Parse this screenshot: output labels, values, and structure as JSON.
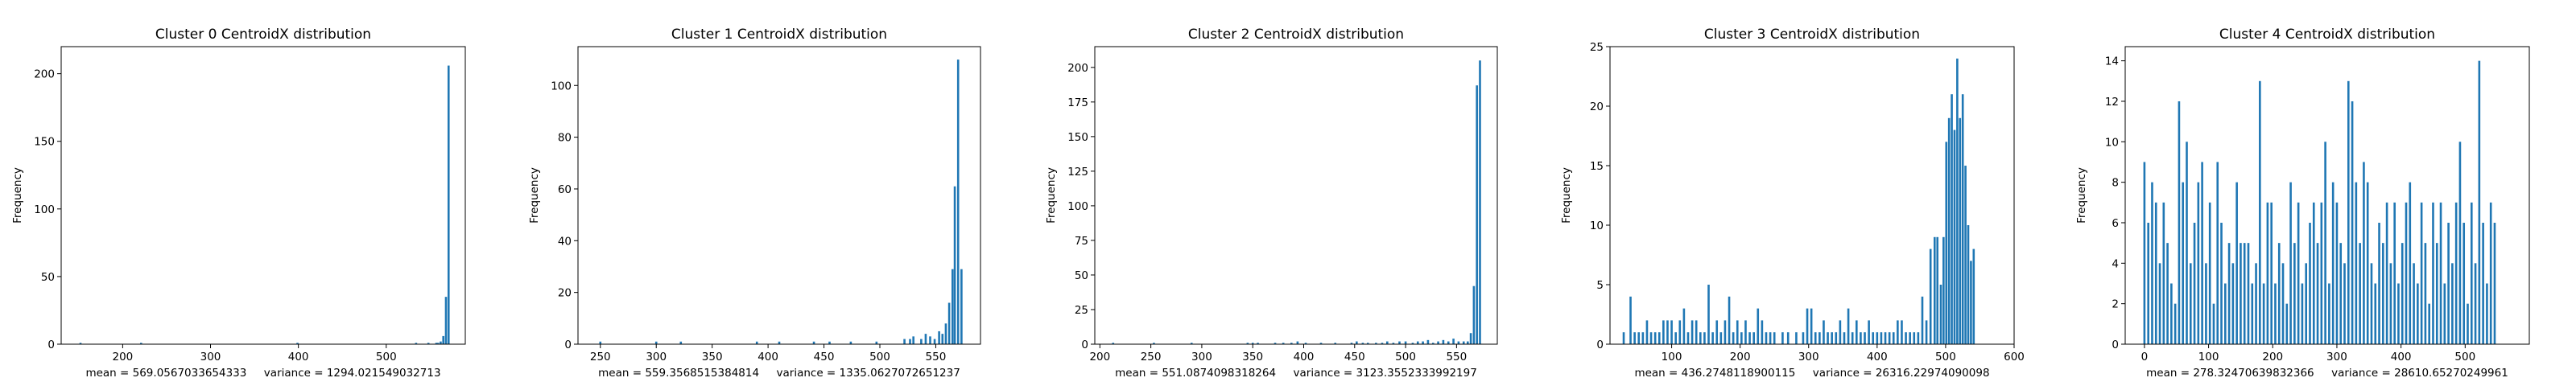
{
  "colors": {
    "bar": "#1f77b4",
    "axis": "#000000",
    "background": "#ffffff"
  },
  "chart_data": [
    {
      "type": "bar",
      "title": "Cluster 0 CentroidX distribution",
      "ylabel": "Frequency",
      "xlabel": "mean = 569.0567033654333     variance = 1294.021549032713",
      "xlim": [
        130,
        590
      ],
      "ylim": [
        0,
        220
      ],
      "xticks": [
        200,
        300,
        400,
        500
      ],
      "yticks": [
        0,
        50,
        100,
        150,
        200
      ],
      "grid": false,
      "bars": [
        [
          152,
          1
        ],
        [
          221,
          1
        ],
        [
          399,
          1
        ],
        [
          534,
          1
        ],
        [
          548,
          1
        ],
        [
          557,
          1
        ],
        [
          559,
          1
        ],
        [
          562,
          2
        ],
        [
          565,
          6
        ],
        [
          568,
          35
        ],
        [
          571,
          206
        ]
      ]
    },
    {
      "type": "bar",
      "title": "Cluster 1 CentroidX distribution",
      "ylabel": "Frequency",
      "xlabel": "mean = 559.3568515384814     variance = 1335.0627072651237",
      "xlim": [
        230,
        590
      ],
      "ylim": [
        0,
        115
      ],
      "xticks": [
        250,
        300,
        350,
        400,
        450,
        500,
        550
      ],
      "yticks": [
        0,
        20,
        40,
        60,
        80,
        100
      ],
      "grid": false,
      "bars": [
        [
          250,
          1
        ],
        [
          300,
          1
        ],
        [
          322,
          1
        ],
        [
          390,
          1
        ],
        [
          410,
          1
        ],
        [
          441,
          1
        ],
        [
          455,
          1
        ],
        [
          474,
          1
        ],
        [
          497,
          1
        ],
        [
          522,
          2
        ],
        [
          527,
          2
        ],
        [
          530,
          3
        ],
        [
          537,
          2
        ],
        [
          541,
          4
        ],
        [
          545,
          3
        ],
        [
          549,
          2
        ],
        [
          553,
          5
        ],
        [
          556,
          4
        ],
        [
          559,
          8
        ],
        [
          562,
          16
        ],
        [
          565,
          29
        ],
        [
          567,
          61
        ],
        [
          570,
          110
        ],
        [
          573,
          29
        ]
      ]
    },
    {
      "type": "bar",
      "title": "Cluster 2 CentroidX distribution",
      "ylabel": "Frequency",
      "xlabel": "mean = 551.0874098318264     variance = 3123.3552333992197",
      "xlim": [
        195,
        590
      ],
      "ylim": [
        0,
        215
      ],
      "xticks": [
        200,
        250,
        300,
        350,
        400,
        450,
        500,
        550
      ],
      "yticks": [
        0,
        25,
        50,
        75,
        100,
        125,
        150,
        175,
        200
      ],
      "grid": false,
      "bars": [
        [
          213,
          1
        ],
        [
          253,
          1
        ],
        [
          290,
          1
        ],
        [
          345,
          1
        ],
        [
          350,
          1
        ],
        [
          355,
          1
        ],
        [
          372,
          1
        ],
        [
          380,
          1
        ],
        [
          388,
          1
        ],
        [
          394,
          2
        ],
        [
          402,
          1
        ],
        [
          417,
          1
        ],
        [
          431,
          1
        ],
        [
          447,
          1
        ],
        [
          452,
          2
        ],
        [
          458,
          1
        ],
        [
          463,
          1
        ],
        [
          471,
          1
        ],
        [
          477,
          1
        ],
        [
          482,
          2
        ],
        [
          488,
          1
        ],
        [
          494,
          2
        ],
        [
          500,
          2
        ],
        [
          507,
          1
        ],
        [
          512,
          2
        ],
        [
          517,
          2
        ],
        [
          522,
          3
        ],
        [
          527,
          1
        ],
        [
          532,
          2
        ],
        [
          537,
          3
        ],
        [
          542,
          2
        ],
        [
          547,
          4
        ],
        [
          552,
          2
        ],
        [
          557,
          2
        ],
        [
          561,
          2
        ],
        [
          564,
          8
        ],
        [
          567,
          42
        ],
        [
          570,
          187
        ],
        [
          573,
          205
        ]
      ]
    },
    {
      "type": "bar",
      "title": "Cluster 3 CentroidX distribution",
      "ylabel": "Frequency",
      "xlabel": "mean = 436.2748118900115     variance = 26316.22974090098",
      "xlim": [
        10,
        600
      ],
      "ylim": [
        0,
        25
      ],
      "xticks": [
        100,
        200,
        300,
        400,
        500,
        600
      ],
      "yticks": [
        0,
        5,
        10,
        15,
        20,
        25
      ],
      "grid": false,
      "bars": [
        [
          30,
          1
        ],
        [
          40,
          4
        ],
        [
          46,
          1
        ],
        [
          52,
          1
        ],
        [
          58,
          1
        ],
        [
          64,
          2
        ],
        [
          70,
          1
        ],
        [
          76,
          1
        ],
        [
          82,
          1
        ],
        [
          88,
          2
        ],
        [
          94,
          2
        ],
        [
          100,
          2
        ],
        [
          106,
          1
        ],
        [
          112,
          2
        ],
        [
          118,
          3
        ],
        [
          124,
          1
        ],
        [
          130,
          2
        ],
        [
          136,
          2
        ],
        [
          142,
          1
        ],
        [
          148,
          1
        ],
        [
          154,
          5
        ],
        [
          160,
          1
        ],
        [
          166,
          2
        ],
        [
          172,
          1
        ],
        [
          178,
          2
        ],
        [
          184,
          4
        ],
        [
          190,
          1
        ],
        [
          196,
          2
        ],
        [
          202,
          1
        ],
        [
          208,
          2
        ],
        [
          214,
          1
        ],
        [
          220,
          1
        ],
        [
          226,
          3
        ],
        [
          232,
          2
        ],
        [
          238,
          1
        ],
        [
          244,
          1
        ],
        [
          250,
          1
        ],
        [
          262,
          1
        ],
        [
          270,
          1
        ],
        [
          282,
          1
        ],
        [
          292,
          1
        ],
        [
          298,
          3
        ],
        [
          304,
          3
        ],
        [
          310,
          1
        ],
        [
          316,
          1
        ],
        [
          322,
          2
        ],
        [
          328,
          1
        ],
        [
          334,
          1
        ],
        [
          340,
          1
        ],
        [
          346,
          2
        ],
        [
          352,
          1
        ],
        [
          358,
          3
        ],
        [
          364,
          1
        ],
        [
          370,
          2
        ],
        [
          376,
          1
        ],
        [
          382,
          1
        ],
        [
          388,
          2
        ],
        [
          394,
          1
        ],
        [
          400,
          1
        ],
        [
          406,
          1
        ],
        [
          412,
          1
        ],
        [
          418,
          1
        ],
        [
          424,
          1
        ],
        [
          430,
          2
        ],
        [
          436,
          2
        ],
        [
          442,
          1
        ],
        [
          448,
          1
        ],
        [
          454,
          1
        ],
        [
          460,
          1
        ],
        [
          466,
          4
        ],
        [
          472,
          2
        ],
        [
          478,
          8
        ],
        [
          484,
          9
        ],
        [
          488,
          9
        ],
        [
          493,
          5
        ],
        [
          497,
          9
        ],
        [
          501,
          17
        ],
        [
          505,
          19
        ],
        [
          509,
          21
        ],
        [
          513,
          18
        ],
        [
          517,
          24
        ],
        [
          521,
          19
        ],
        [
          525,
          21
        ],
        [
          529,
          15
        ],
        [
          533,
          10
        ],
        [
          537,
          7
        ],
        [
          541,
          8
        ]
      ]
    },
    {
      "type": "bar",
      "title": "Cluster 4 CentroidX distribution",
      "ylabel": "Frequency",
      "xlabel": "mean = 278.32470639832366     variance = 28610.65270249961",
      "xlim": [
        -30,
        600
      ],
      "ylim": [
        0,
        14.7
      ],
      "xticks": [
        0,
        100,
        200,
        300,
        400,
        500
      ],
      "yticks": [
        0,
        2,
        4,
        6,
        8,
        10,
        12,
        14
      ],
      "grid": false,
      "bars": [
        [
          0,
          9
        ],
        [
          6,
          6
        ],
        [
          12,
          8
        ],
        [
          18,
          7
        ],
        [
          24,
          4
        ],
        [
          30,
          7
        ],
        [
          36,
          5
        ],
        [
          42,
          3
        ],
        [
          48,
          2
        ],
        [
          54,
          12
        ],
        [
          60,
          8
        ],
        [
          66,
          10
        ],
        [
          72,
          4
        ],
        [
          78,
          6
        ],
        [
          84,
          8
        ],
        [
          90,
          9
        ],
        [
          96,
          4
        ],
        [
          102,
          7
        ],
        [
          108,
          2
        ],
        [
          114,
          9
        ],
        [
          120,
          6
        ],
        [
          126,
          3
        ],
        [
          132,
          5
        ],
        [
          138,
          4
        ],
        [
          144,
          8
        ],
        [
          150,
          5
        ],
        [
          156,
          5
        ],
        [
          162,
          5
        ],
        [
          168,
          3
        ],
        [
          174,
          4
        ],
        [
          180,
          13
        ],
        [
          186,
          3
        ],
        [
          192,
          7
        ],
        [
          198,
          7
        ],
        [
          204,
          3
        ],
        [
          210,
          5
        ],
        [
          216,
          4
        ],
        [
          222,
          2
        ],
        [
          228,
          8
        ],
        [
          234,
          5
        ],
        [
          240,
          7
        ],
        [
          246,
          3
        ],
        [
          252,
          4
        ],
        [
          258,
          6
        ],
        [
          264,
          7
        ],
        [
          270,
          5
        ],
        [
          276,
          7
        ],
        [
          282,
          10
        ],
        [
          288,
          3
        ],
        [
          294,
          8
        ],
        [
          300,
          7
        ],
        [
          306,
          5
        ],
        [
          312,
          4
        ],
        [
          318,
          13
        ],
        [
          324,
          12
        ],
        [
          330,
          8
        ],
        [
          336,
          5
        ],
        [
          342,
          9
        ],
        [
          348,
          8
        ],
        [
          354,
          4
        ],
        [
          360,
          3
        ],
        [
          366,
          6
        ],
        [
          372,
          5
        ],
        [
          378,
          7
        ],
        [
          384,
          4
        ],
        [
          390,
          7
        ],
        [
          396,
          3
        ],
        [
          402,
          5
        ],
        [
          408,
          7
        ],
        [
          414,
          8
        ],
        [
          420,
          4
        ],
        [
          426,
          3
        ],
        [
          432,
          7
        ],
        [
          438,
          5
        ],
        [
          444,
          2
        ],
        [
          450,
          7
        ],
        [
          456,
          5
        ],
        [
          462,
          7
        ],
        [
          468,
          3
        ],
        [
          474,
          6
        ],
        [
          480,
          4
        ],
        [
          486,
          7
        ],
        [
          492,
          10
        ],
        [
          498,
          6
        ],
        [
          504,
          2
        ],
        [
          510,
          7
        ],
        [
          516,
          4
        ],
        [
          522,
          14
        ],
        [
          528,
          6
        ],
        [
          534,
          3
        ],
        [
          540,
          7
        ],
        [
          546,
          6
        ]
      ]
    }
  ]
}
